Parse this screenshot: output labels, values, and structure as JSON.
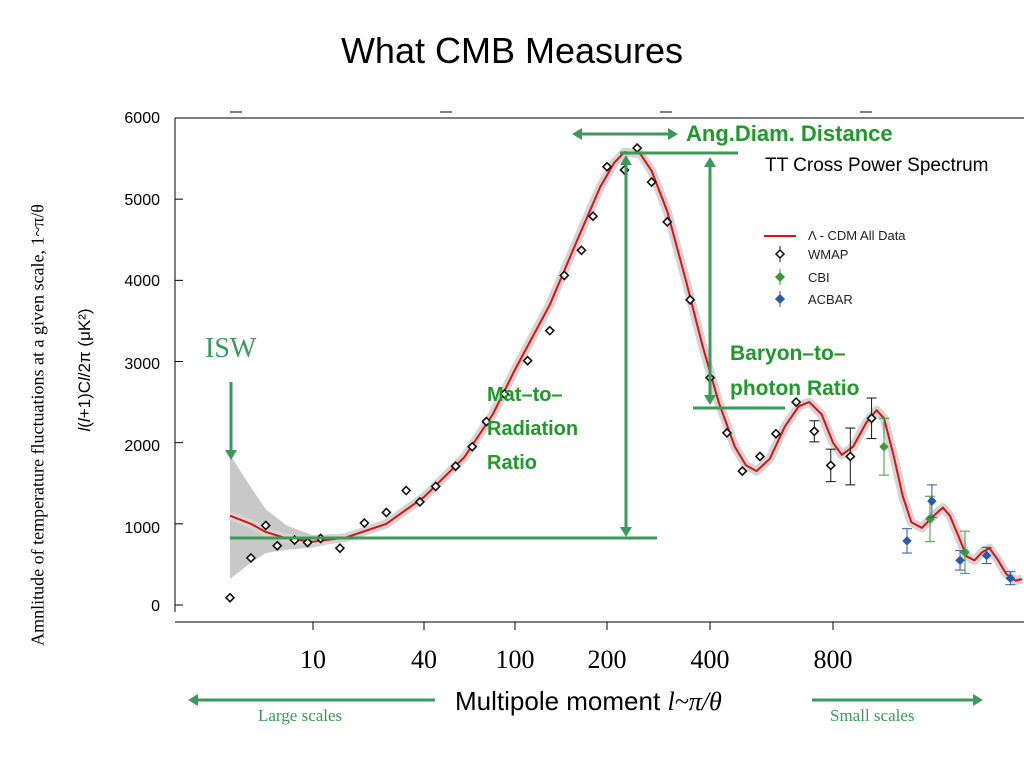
{
  "title": "What CMB Measures",
  "side_label": "Amnlitude of temperature fluctuations at a given scale, 1~π/θ",
  "chart_data": {
    "type": "scatter",
    "title": "TT Cross Power Spectrum",
    "xlabel": "Multipole moment",
    "xlabel_symbol": "l~π/θ",
    "ylabel_parts": [
      "l",
      "(",
      "l",
      "+1)C",
      "l",
      "/2π (μK²)"
    ],
    "xscale": "log",
    "ylim": [
      0,
      6000
    ],
    "yticks": [
      0,
      1000,
      2000,
      3000,
      4000,
      5000,
      6000
    ],
    "xtick_labels": [
      {
        "label": "10",
        "l": 10
      },
      {
        "label": "40",
        "l": 40
      },
      {
        "label": "100",
        "l": 100
      },
      {
        "label": "200",
        "l": 200
      },
      {
        "label": "400",
        "l": 400
      },
      {
        "label": "800",
        "l": 800
      }
    ],
    "legend": {
      "placement": "right",
      "entries": [
        "Λ - CDM All Data",
        "WMAP",
        "CBI",
        "ACBAR"
      ]
    },
    "model_curve": {
      "name": "Λ - CDM All Data",
      "color": "#dd1111",
      "points": [
        [
          2,
          1100
        ],
        [
          3,
          1000
        ],
        [
          4,
          900
        ],
        [
          6,
          820
        ],
        [
          10,
          780
        ],
        [
          15,
          830
        ],
        [
          25,
          1000
        ],
        [
          40,
          1330
        ],
        [
          60,
          1820
        ],
        [
          80,
          2350
        ],
        [
          100,
          2900
        ],
        [
          130,
          3700
        ],
        [
          160,
          4500
        ],
        [
          190,
          5150
        ],
        [
          210,
          5450
        ],
        [
          225,
          5580
        ],
        [
          250,
          5560
        ],
        [
          270,
          5350
        ],
        [
          300,
          4850
        ],
        [
          340,
          4000
        ],
        [
          380,
          3200
        ],
        [
          420,
          2500
        ],
        [
          460,
          1950
        ],
        [
          490,
          1720
        ],
        [
          520,
          1650
        ],
        [
          560,
          1800
        ],
        [
          610,
          2200
        ],
        [
          660,
          2450
        ],
        [
          700,
          2500
        ],
        [
          750,
          2350
        ],
        [
          800,
          2000
        ],
        [
          830,
          1850
        ],
        [
          870,
          1950
        ],
        [
          920,
          2250
        ],
        [
          960,
          2400
        ],
        [
          990,
          2300
        ],
        [
          1030,
          1850
        ],
        [
          1070,
          1350
        ],
        [
          1110,
          1020
        ],
        [
          1160,
          950
        ],
        [
          1220,
          1100
        ],
        [
          1270,
          1200
        ],
        [
          1310,
          1100
        ],
        [
          1360,
          850
        ],
        [
          1410,
          600
        ],
        [
          1460,
          550
        ],
        [
          1510,
          650
        ],
        [
          1560,
          700
        ],
        [
          1620,
          550
        ],
        [
          1680,
          380
        ],
        [
          1750,
          300
        ],
        [
          1800,
          320
        ]
      ]
    },
    "cosmic_variance_band": {
      "upper": [
        [
          2,
          1850
        ],
        [
          3,
          1450
        ],
        [
          4,
          1180
        ],
        [
          6,
          980
        ],
        [
          10,
          860
        ],
        [
          15,
          880
        ],
        [
          25,
          1030
        ]
      ],
      "lower": [
        [
          2,
          320
        ],
        [
          3,
          520
        ],
        [
          4,
          640
        ],
        [
          6,
          680
        ],
        [
          10,
          710
        ],
        [
          15,
          790
        ],
        [
          25,
          970
        ]
      ]
    },
    "series": [
      {
        "name": "WMAP",
        "color": "#111111",
        "points": [
          [
            2,
            90,
            0
          ],
          [
            3,
            580,
            0
          ],
          [
            4,
            980,
            0
          ],
          [
            5,
            730,
            0
          ],
          [
            7,
            800,
            0
          ],
          [
            9,
            770,
            0
          ],
          [
            11,
            820,
            0
          ],
          [
            14,
            700,
            0
          ],
          [
            19,
            1010,
            0
          ],
          [
            25,
            1140,
            0
          ],
          [
            32,
            1410,
            0
          ],
          [
            38,
            1270,
            0
          ],
          [
            45,
            1460,
            0
          ],
          [
            55,
            1710,
            0
          ],
          [
            65,
            1950,
            0
          ],
          [
            75,
            2260,
            0
          ],
          [
            90,
            2600,
            0
          ],
          [
            110,
            3010,
            0
          ],
          [
            130,
            3380,
            0
          ],
          [
            145,
            4060,
            0
          ],
          [
            165,
            4370,
            0
          ],
          [
            180,
            4790,
            0
          ],
          [
            200,
            5400,
            0
          ],
          [
            225,
            5360,
            0
          ],
          [
            245,
            5630,
            0
          ],
          [
            270,
            5210,
            0
          ],
          [
            300,
            4720,
            0
          ],
          [
            350,
            3760,
            0
          ],
          [
            400,
            2800,
            0
          ],
          [
            440,
            2120,
            0
          ],
          [
            480,
            1650,
            0
          ],
          [
            530,
            1830,
            0
          ],
          [
            580,
            2110,
            0
          ],
          [
            650,
            2500,
            0
          ],
          [
            720,
            2140,
            130
          ],
          [
            790,
            1720,
            200
          ],
          [
            860,
            1830,
            350
          ],
          [
            940,
            2300,
            250
          ]
        ]
      },
      {
        "name": "CBI",
        "color": "#3a9a3a",
        "points": [
          [
            990,
            1950,
            350
          ],
          [
            1200,
            1060,
            280
          ],
          [
            1400,
            650,
            260
          ]
        ]
      },
      {
        "name": "ACBAR",
        "color": "#2a5aa8",
        "points": [
          [
            1090,
            790,
            150
          ],
          [
            1210,
            1280,
            200
          ],
          [
            1370,
            550,
            120
          ],
          [
            1540,
            610,
            100
          ],
          [
            1710,
            330,
            80
          ]
        ]
      }
    ]
  },
  "annotations": {
    "ang_diam": "Ang.Diam. Distance",
    "baryon_line1": "Baryon–to–",
    "baryon_line2": "photon Ratio",
    "mat_line1": "Mat–to–",
    "mat_line2": "Radiation",
    "mat_line3": "Ratio",
    "isw": "ISW",
    "large_scales": "Large scales",
    "small_scales": "Small scales"
  },
  "colors": {
    "annotation_green": "#3a9a5a",
    "label_green": "#1f9a2a",
    "model_red": "#dd1111",
    "band_gray": "#c8c8c8"
  }
}
